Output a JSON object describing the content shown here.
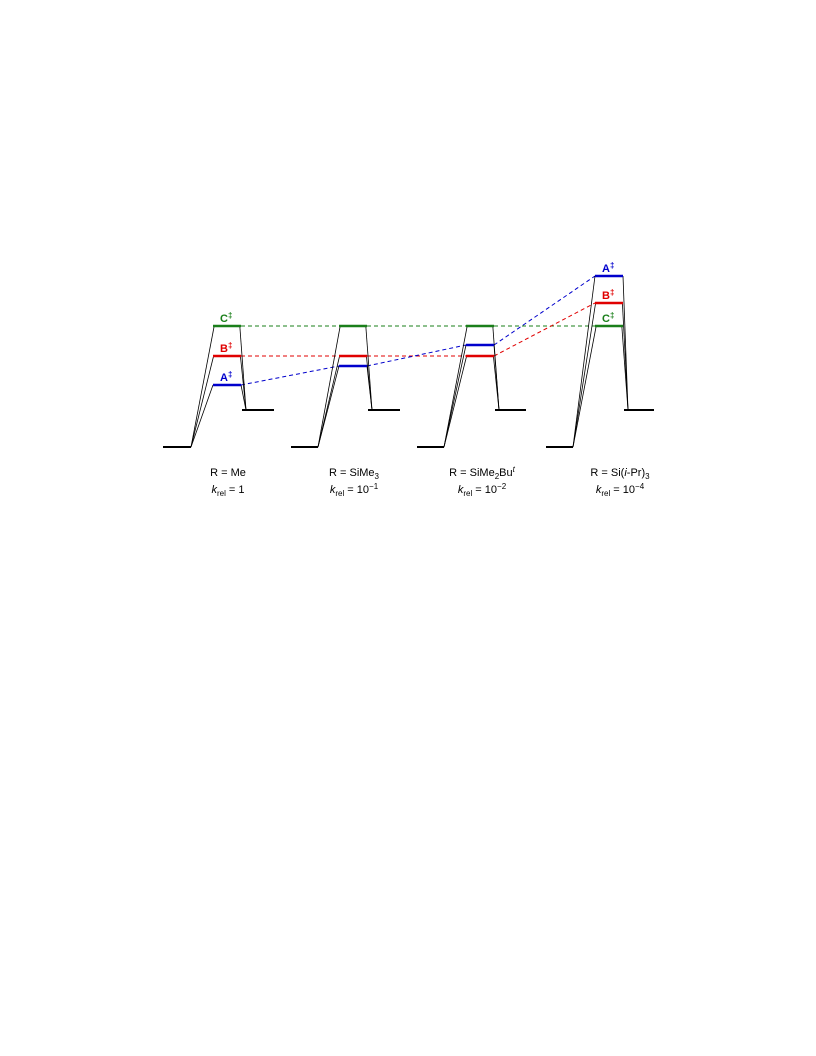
{
  "colors": {
    "A": "#0000cc",
    "B": "#e00000",
    "C": "#1a7f1a",
    "baseline": "#000000"
  },
  "ts_labels": {
    "A": "A",
    "B": "B",
    "C": "C",
    "dagger": "‡"
  },
  "panels": [
    {
      "r_prefix": "R = ",
      "r_main": "Me",
      "r_sub": "",
      "r_after": "",
      "r_sup": "",
      "r_tail": "",
      "r_italic": false,
      "k_label": "k",
      "k_sub": "rel",
      "k_eq": " = 1",
      "k_sup": "",
      "show_labels": [
        "C",
        "B",
        "A"
      ],
      "label_side": "left"
    },
    {
      "r_prefix": "R = ",
      "r_main": "SiMe",
      "r_sub": "3",
      "r_after": "",
      "r_sup": "",
      "r_tail": "",
      "r_italic": false,
      "k_label": "k",
      "k_sub": "rel",
      "k_eq": " = 10",
      "k_sup": "−1",
      "show_labels": [],
      "label_side": "left"
    },
    {
      "r_prefix": "R = ",
      "r_main": "SiMe",
      "r_sub": "2",
      "r_after": "Bu",
      "r_sup": "t",
      "r_tail": "",
      "r_italic": false,
      "k_label": "k",
      "k_sub": "rel",
      "k_eq": " = 10",
      "k_sup": "−2",
      "show_labels": [],
      "label_side": "left"
    },
    {
      "r_prefix": "R = Si(",
      "r_main": "i",
      "r_sub": "",
      "r_after": "-Pr)",
      "r_sup": "",
      "r_tail": "3",
      "r_italic": true,
      "k_label": "k",
      "k_sub": "rel",
      "k_eq": " = 10",
      "k_sup": "−4",
      "show_labels": [
        "A",
        "B",
        "C"
      ],
      "label_side": "left"
    }
  ]
}
